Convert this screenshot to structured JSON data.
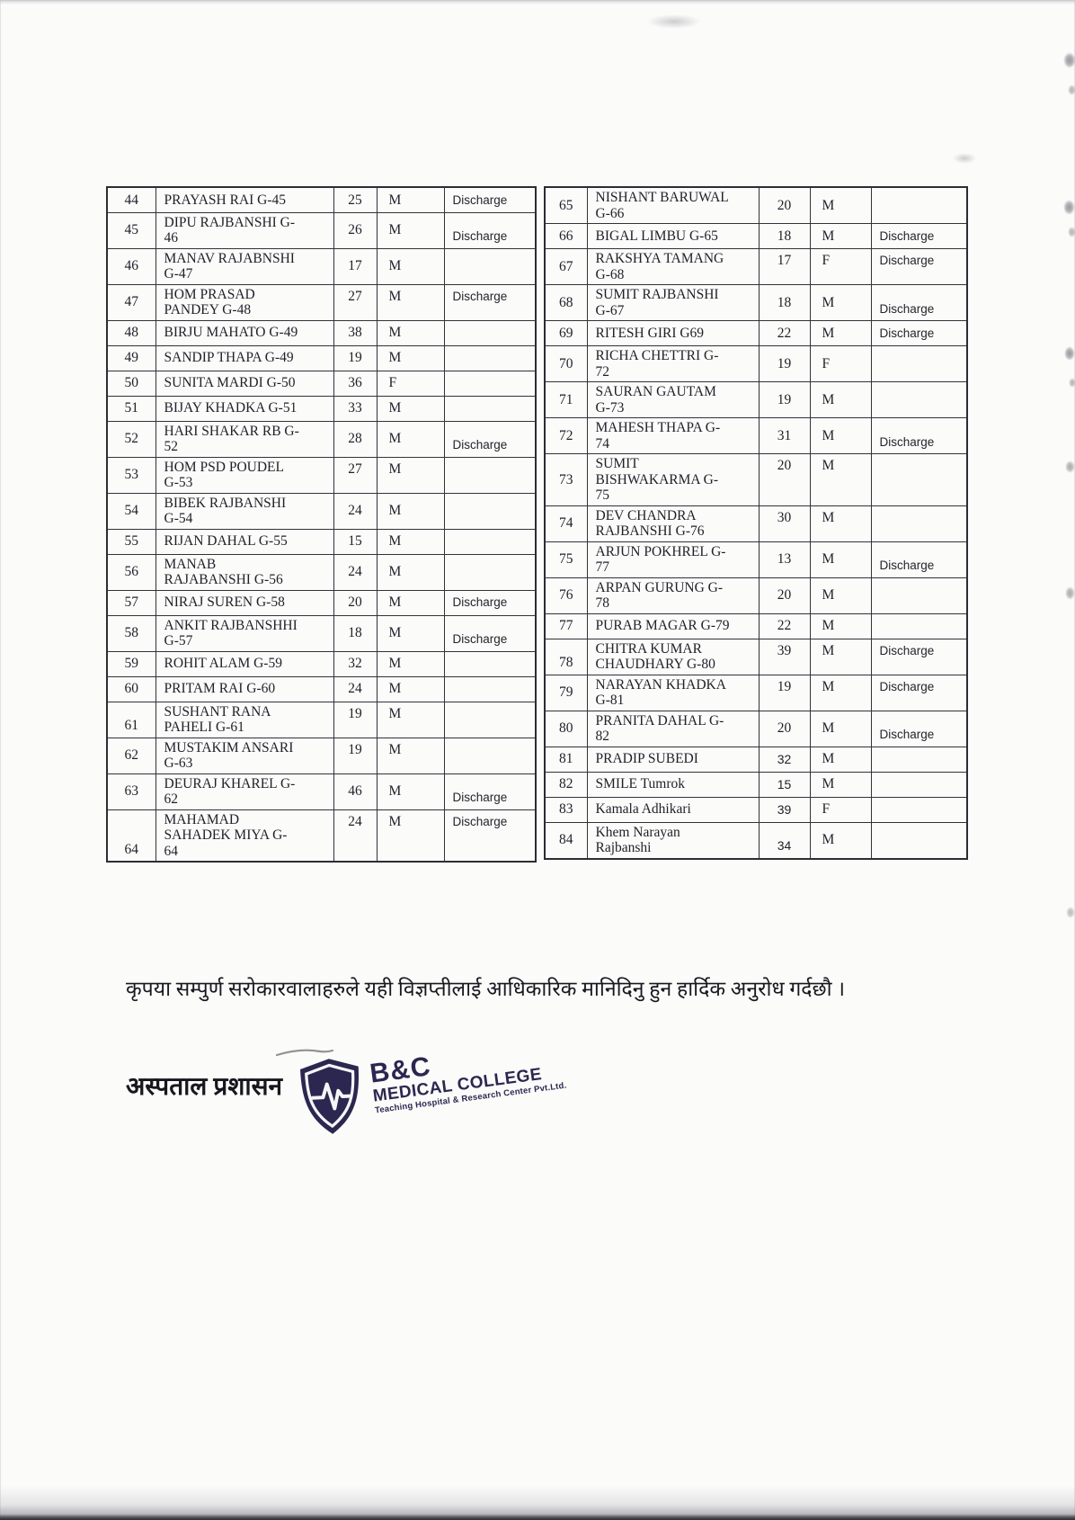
{
  "document": {
    "notice": "कृपया सम्पुर्ण सरोकारवालाहरुले यही विज्ञप्तीलाई आधिकारिक मानिदिनु हुन हार्दिक अनुरोध गर्दछौ ।",
    "signature": "अस्पताल प्रशासन"
  },
  "logo": {
    "title": "B&C",
    "subtitle": "MEDICAL COLLEGE",
    "tagline": "Teaching Hospital & Research Center Pvt.Ltd.",
    "color": "#2b2750",
    "icon": "shield-heartbeat-icon"
  },
  "table_left": {
    "rows": [
      {
        "sn": "44",
        "name": "PRAYASH RAI G-45",
        "age": "25",
        "sex": "M",
        "status": "Discharge"
      },
      {
        "sn": "45",
        "name": "DIPU RAJBANSHI G-\n46",
        "age": "26",
        "sex": "M",
        "status": "Discharge",
        "status_pos": "bottom"
      },
      {
        "sn": "46",
        "name": "MANAV RAJABNSHI\nG-47",
        "age": "17",
        "sex": "M",
        "status": ""
      },
      {
        "sn": "47",
        "name": "HOM PRASAD\nPANDEY G-48",
        "age": "27",
        "sex": "M",
        "status": "Discharge",
        "status_pos": "top",
        "age_pos": "top"
      },
      {
        "sn": "48",
        "name": "BIRJU MAHATO G-49",
        "age": "38",
        "sex": "M",
        "status": ""
      },
      {
        "sn": "49",
        "name": "SANDIP THAPA G-49",
        "age": "19",
        "sex": "M",
        "status": ""
      },
      {
        "sn": "50",
        "name": "SUNITA MARDI G-50",
        "age": "36",
        "sex": "F",
        "status": ""
      },
      {
        "sn": "51",
        "name": "BIJAY KHADKA G-51",
        "age": "33",
        "sex": "M",
        "status": ""
      },
      {
        "sn": "52",
        "name": "HARI SHAKAR RB G-\n52",
        "age": "28",
        "sex": "M",
        "status": "Discharge",
        "status_pos": "bottom"
      },
      {
        "sn": "53",
        "name": "HOM PSD POUDEL\nG-53",
        "age": "27",
        "sex": "M",
        "status": "",
        "age_pos": "top"
      },
      {
        "sn": "54",
        "name": "BIBEK RAJBANSHI\nG-54",
        "age": "24",
        "sex": "M",
        "status": ""
      },
      {
        "sn": "55",
        "name": "RIJAN DAHAL G-55",
        "age": "15",
        "sex": "M",
        "status": ""
      },
      {
        "sn": "56",
        "name": "MANAB\nRAJABANSHI G-56",
        "age": "24",
        "sex": "M",
        "status": ""
      },
      {
        "sn": "57",
        "name": "NIRAJ SUREN G-58",
        "age": "20",
        "sex": "M",
        "status": "Discharge"
      },
      {
        "sn": "58",
        "name": "ANKIT RAJBANSHHI\nG-57",
        "age": "18",
        "sex": "M",
        "status": "Discharge",
        "status_pos": "bottom"
      },
      {
        "sn": "59",
        "name": "ROHIT ALAM G-59",
        "age": "32",
        "sex": "M",
        "status": ""
      },
      {
        "sn": "60",
        "name": "PRITAM RAI G-60",
        "age": "24",
        "sex": "M",
        "status": ""
      },
      {
        "sn": "61",
        "name": "SUSHANT RANA\nPAHELI G-61",
        "age": "19",
        "sex": "M",
        "status": "",
        "age_pos": "top",
        "num_pos": "bottom"
      },
      {
        "sn": "62",
        "name": "MUSTAKIM ANSARI\nG-63",
        "age": "19",
        "sex": "M",
        "status": "",
        "age_pos": "top"
      },
      {
        "sn": "63",
        "name": "DEURAJ KHAREL G-\n62",
        "age": "46",
        "sex": "M",
        "status": "Discharge",
        "status_pos": "bottom"
      },
      {
        "sn": "64",
        "name": "MAHAMAD\nSAHADEK MIYA G-\n64",
        "age": "24",
        "sex": "M",
        "status": "Discharge",
        "status_pos": "top",
        "age_pos": "top",
        "num_pos": "bottom"
      }
    ]
  },
  "table_right": {
    "rows": [
      {
        "sn": "65",
        "name": "NISHANT BARUWAL\nG-66",
        "age": "20",
        "sex": "M",
        "status": ""
      },
      {
        "sn": "66",
        "name": "BIGAL LIMBU G-65",
        "age": "18",
        "sex": "M",
        "status": "Discharge"
      },
      {
        "sn": "67",
        "name": "RAKSHYA TAMANG\nG-68",
        "age": "17",
        "sex": "F",
        "status": "Discharge",
        "status_pos": "top",
        "age_pos": "top"
      },
      {
        "sn": "68",
        "name": "SUMIT RAJBANSHI\nG-67",
        "age": "18",
        "sex": "M",
        "status": "Discharge",
        "status_pos": "bottom"
      },
      {
        "sn": "69",
        "name": "RITESH GIRI G69",
        "age": "22",
        "sex": "M",
        "status": "Discharge"
      },
      {
        "sn": "70",
        "name": "RICHA CHETTRI G-\n72",
        "age": "19",
        "sex": "F",
        "status": ""
      },
      {
        "sn": "71",
        "name": "SAURAN GAUTAM\nG-73",
        "age": "19",
        "sex": "M",
        "status": ""
      },
      {
        "sn": "72",
        "name": "MAHESH THAPA G-\n74",
        "age": "31",
        "sex": "M",
        "status": "Discharge",
        "status_pos": "bottom"
      },
      {
        "sn": "73",
        "name": "SUMIT\nBISHWAKARMA G-\n75",
        "age": "20",
        "sex": "M",
        "status": "",
        "age_pos": "top"
      },
      {
        "sn": "74",
        "name": "DEV CHANDRA\nRAJBANSHI G-76",
        "age": "30",
        "sex": "M",
        "status": "",
        "age_pos": "top"
      },
      {
        "sn": "75",
        "name": "ARJUN POKHREL G-\n77",
        "age": "13",
        "sex": "M",
        "status": "Discharge",
        "status_pos": "bottom"
      },
      {
        "sn": "76",
        "name": "ARPAN GURUNG G-\n78",
        "age": "20",
        "sex": "M",
        "status": ""
      },
      {
        "sn": "77",
        "name": "PURAB MAGAR G-79",
        "age": "22",
        "sex": "M",
        "status": ""
      },
      {
        "sn": "78",
        "name": "CHITRA KUMAR\nCHAUDHARY G-80",
        "age": "39",
        "sex": "M",
        "status": "Discharge",
        "status_pos": "top",
        "age_pos": "top",
        "num_pos": "bottom"
      },
      {
        "sn": "79",
        "name": "NARAYAN KHADKA\nG-81",
        "age": "19",
        "sex": "M",
        "status": "Discharge",
        "status_pos": "top",
        "age_pos": "top"
      },
      {
        "sn": "80",
        "name": "PRANITA DAHAL G-\n82",
        "age": "20",
        "sex": "M",
        "status": "Discharge",
        "status_pos": "bottom"
      },
      {
        "sn": "81",
        "name": "PRADIP SUBEDI",
        "age": "32",
        "sex": "M",
        "status": "",
        "age_sans": true,
        "age_pos": "bottom"
      },
      {
        "sn": "82",
        "name": "SMILE Tumrok",
        "age": "15",
        "sex": "M",
        "status": "",
        "age_sans": true,
        "age_pos": "bottom"
      },
      {
        "sn": "83",
        "name": "Kamala Adhikari",
        "age": "39",
        "sex": "F",
        "status": "",
        "age_sans": true,
        "age_pos": "bottom"
      },
      {
        "sn": "84",
        "name": "Khem Narayan\nRajbanshi",
        "age": "34",
        "sex": "M",
        "status": "",
        "age_sans": true,
        "age_pos": "bottom"
      }
    ]
  }
}
